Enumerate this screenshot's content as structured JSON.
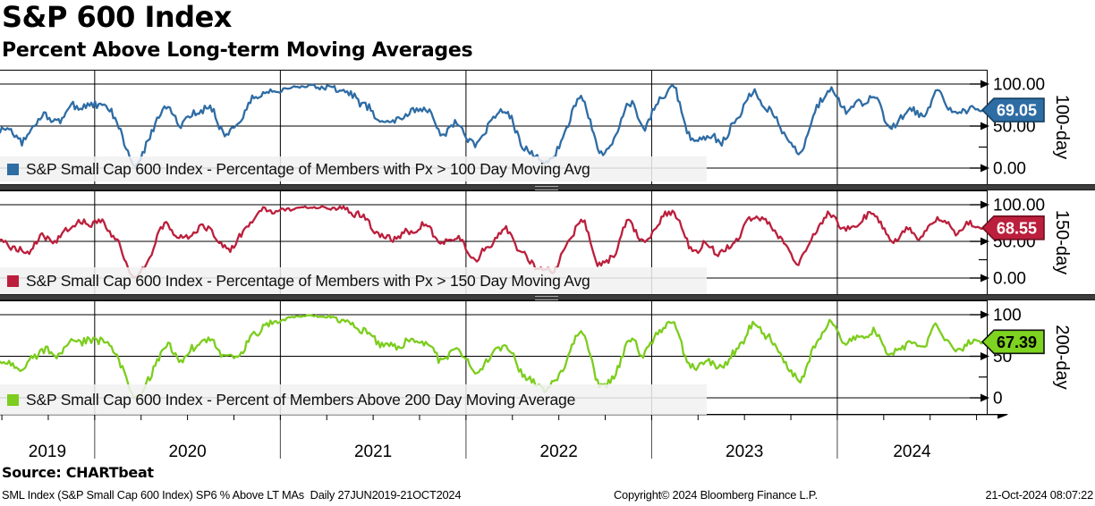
{
  "header": {
    "title": "S&P 600 Index",
    "subtitle": "Percent Above Long-term Moving Averages"
  },
  "source_label": "Source: CHARTbeat",
  "footer": {
    "left": "SML Index (S&P Small Cap 600 Index) SP6 % Above LT MAs  Daily 27JUN2019-21OCT2024",
    "center": "Copyright© 2024 Bloomberg Finance L.P.",
    "right": "21-Oct-2024 08:07:22"
  },
  "x_axis": {
    "start_decimal_year": 2019.49,
    "end_decimal_year": 2024.805,
    "year_boundaries": [
      2020,
      2021,
      2022,
      2023,
      2024
    ],
    "year_labels": [
      "2019",
      "2020",
      "2021",
      "2022",
      "2023",
      "2024"
    ]
  },
  "chart_data": [
    {
      "type": "line",
      "panel_title": "100-day",
      "legend": "S&P Small Cap 600 Index - Percentage of Members with Px > 100 Day Moving Avg",
      "color": "#2E6CA4",
      "tag_fill": "#2E6CA4",
      "tag_border": "#16405F",
      "tag_text_color": "#ffffff",
      "last_value": 69.05,
      "last_label": "69.05",
      "ylim": [
        0,
        100
      ],
      "tick_values": [
        100,
        50,
        0
      ],
      "tick_labels": [
        "100.00",
        "50.00",
        "0.00"
      ],
      "x_start_decimal_year": 2019.542,
      "x_step_months": 1,
      "values": [
        48,
        36,
        62,
        52,
        70,
        74,
        78,
        55,
        3,
        30,
        72,
        55,
        68,
        72,
        38,
        58,
        86,
        93,
        96,
        97,
        95,
        92,
        88,
        78,
        58,
        56,
        62,
        68,
        44,
        56,
        28,
        48,
        66,
        32,
        16,
        12,
        46,
        82,
        20,
        30,
        80,
        52,
        80,
        88,
        34,
        42,
        36,
        60,
        86,
        68,
        44,
        22,
        68,
        92,
        68,
        76,
        84,
        52,
        70,
        62,
        85,
        62,
        74,
        69.05
      ]
    },
    {
      "type": "line",
      "panel_title": "150-day",
      "legend": "S&P Small Cap 600 Index - Percentage of Members with Px > 150 Day Moving Avg",
      "color": "#BB1F3C",
      "tag_fill": "#BB1F3C",
      "tag_border": "#6E0F20",
      "tag_text_color": "#ffffff",
      "last_value": 68.55,
      "last_label": "68.55",
      "ylim": [
        0,
        100
      ],
      "tick_values": [
        100,
        50,
        0
      ],
      "tick_labels": [
        "100.00",
        "50.00",
        "0.00"
      ],
      "x_start_decimal_year": 2019.542,
      "x_step_months": 1,
      "values": [
        45,
        38,
        58,
        50,
        68,
        72,
        76,
        52,
        2,
        26,
        68,
        52,
        66,
        70,
        40,
        56,
        84,
        92,
        95,
        97,
        96,
        94,
        90,
        82,
        62,
        58,
        64,
        66,
        46,
        58,
        30,
        46,
        62,
        34,
        18,
        14,
        44,
        78,
        18,
        28,
        76,
        54,
        78,
        86,
        36,
        44,
        38,
        58,
        84,
        70,
        46,
        24,
        64,
        90,
        66,
        74,
        82,
        54,
        68,
        60,
        83,
        60,
        72,
        68.55
      ]
    },
    {
      "type": "line",
      "panel_title": "200-day",
      "legend": "S&P Small Cap 600 Index - Percent of Members Above 200 Day Moving Average",
      "color": "#7CCD1D",
      "tag_fill": "#7DD31F",
      "tag_border": "#111111",
      "tag_text_color": "#000000",
      "last_value": 67.39,
      "last_label": "67.39",
      "ylim": [
        0,
        100
      ],
      "tick_values": [
        100,
        50,
        0
      ],
      "tick_labels": [
        "100",
        "50",
        "0"
      ],
      "x_start_decimal_year": 2019.542,
      "x_step_months": 1,
      "values": [
        44,
        40,
        55,
        48,
        66,
        70,
        74,
        50,
        2,
        18,
        62,
        50,
        64,
        68,
        42,
        54,
        82,
        92,
        96,
        98,
        97,
        95,
        92,
        85,
        66,
        60,
        66,
        64,
        48,
        60,
        32,
        44,
        60,
        36,
        20,
        16,
        42,
        76,
        18,
        26,
        72,
        55,
        76,
        84,
        38,
        46,
        40,
        56,
        82,
        72,
        48,
        26,
        62,
        88,
        64,
        72,
        80,
        56,
        66,
        58,
        81,
        58,
        70,
        67.39
      ]
    }
  ]
}
